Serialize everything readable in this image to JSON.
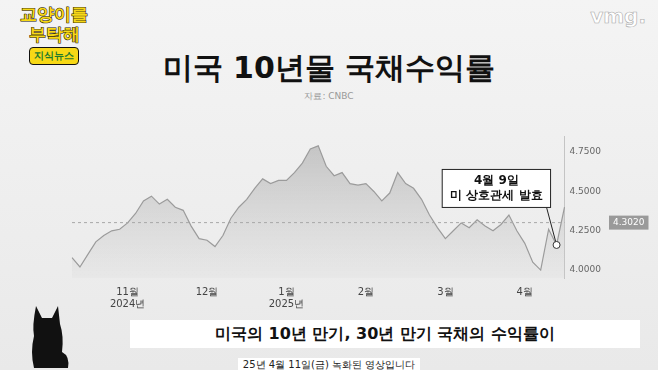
{
  "chart_data": {
    "type": "area",
    "title": "미국 10년물 국채수익률",
    "subtitle": "자료: CNBC",
    "categories": [
      null,
      null,
      null,
      null,
      null,
      null,
      null,
      [
        "11월",
        "2024년"
      ],
      null,
      null,
      null,
      null,
      null,
      null,
      null,
      null,
      null,
      "12월",
      null,
      null,
      null,
      null,
      null,
      null,
      null,
      null,
      null,
      [
        "1월",
        "2025년"
      ],
      null,
      null,
      null,
      null,
      null,
      null,
      null,
      null,
      null,
      "2월",
      null,
      null,
      null,
      null,
      null,
      null,
      null,
      null,
      null,
      "3월",
      null,
      null,
      null,
      null,
      null,
      null,
      null,
      null,
      null,
      "4월",
      null,
      null,
      null,
      null,
      null
    ],
    "values": [
      4.08,
      4.02,
      4.1,
      4.18,
      4.22,
      4.25,
      4.26,
      4.3,
      4.36,
      4.44,
      4.47,
      4.42,
      4.45,
      4.4,
      4.38,
      4.28,
      4.2,
      4.19,
      4.15,
      4.22,
      4.33,
      4.4,
      4.45,
      4.52,
      4.58,
      4.55,
      4.57,
      4.57,
      4.62,
      4.68,
      4.77,
      4.79,
      4.66,
      4.6,
      4.62,
      4.55,
      4.54,
      4.55,
      4.5,
      4.44,
      4.49,
      4.62,
      4.55,
      4.52,
      4.45,
      4.35,
      4.27,
      4.2,
      4.25,
      4.3,
      4.27,
      4.32,
      4.28,
      4.25,
      4.29,
      4.35,
      4.25,
      4.17,
      4.05,
      4.0,
      4.26,
      4.16,
      4.4
    ],
    "color": "#9b9b9b",
    "ylim": [
      3.95,
      4.85
    ],
    "yticks": [
      {
        "value": 4.0,
        "label": "4.0000"
      },
      {
        "value": 4.25,
        "label": "4.2500"
      },
      {
        "value": 4.5,
        "label": "4.5000"
      },
      {
        "value": 4.75,
        "label": "4.7500"
      }
    ],
    "grid": false,
    "legend": "none",
    "reference_line": {
      "value": 4.302,
      "label": "4.3020"
    },
    "annotations": [
      {
        "text": [
          "4월 9일",
          "미 상호관세 발효"
        ],
        "index": 61
      }
    ]
  },
  "header": {
    "logo": [
      "교양이를",
      "부탁해"
    ],
    "logo_tag": "지식뉴스",
    "brand": "vmg."
  },
  "caption": "미국의 10년 만기, 30년 만기 국채의 수익률이",
  "footnote": "25년 4월 11일(금) 녹화된 영상입니다"
}
